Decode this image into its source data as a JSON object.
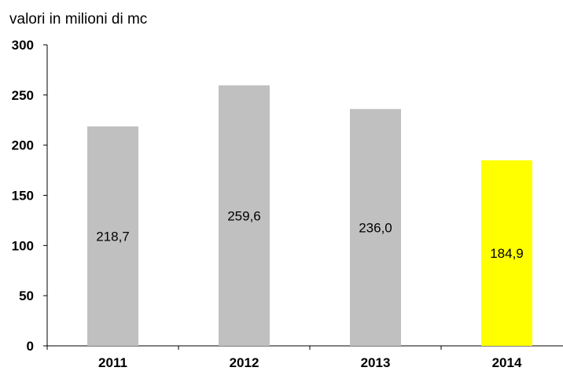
{
  "chart_data": {
    "type": "bar",
    "title": "",
    "unit_label": "valori in milioni di mc",
    "xlabel": "",
    "ylabel": "",
    "categories": [
      "2011",
      "2012",
      "2013",
      "2014"
    ],
    "values": [
      218.7,
      259.6,
      236.0,
      184.9
    ],
    "value_labels": [
      "218,7",
      "259,6",
      "236,0",
      "184,9"
    ],
    "bar_colors": [
      "#c0c0c0",
      "#c0c0c0",
      "#c0c0c0",
      "#ffff00"
    ],
    "ylim": [
      0,
      300
    ],
    "yticks": [
      0,
      50,
      100,
      150,
      200,
      250,
      300
    ],
    "grid": false,
    "legend": "none"
  }
}
